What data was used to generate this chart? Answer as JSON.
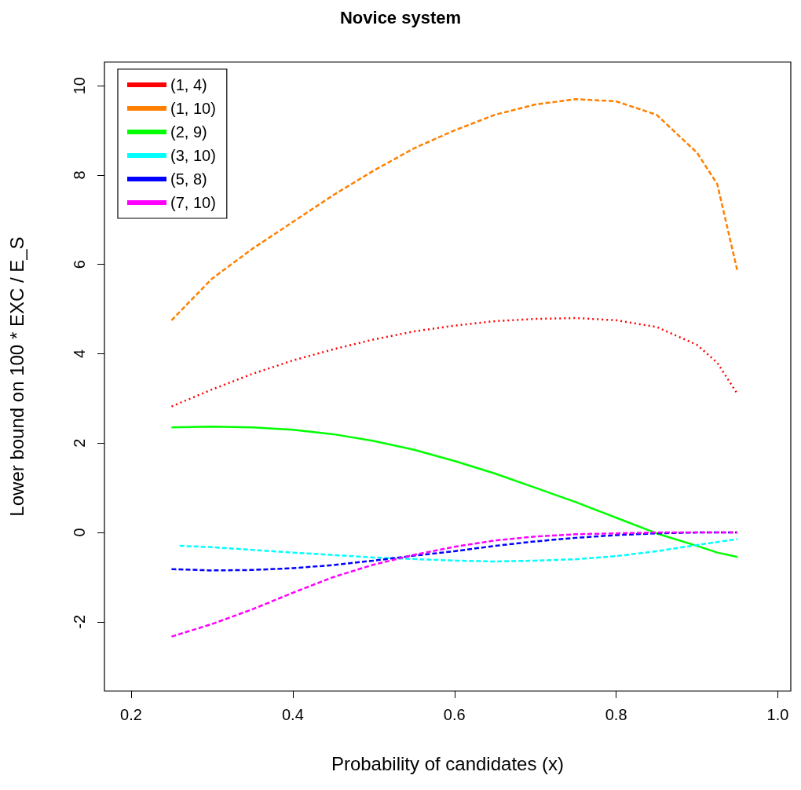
{
  "chart_data": {
    "type": "line",
    "title": "Novice system",
    "xlabel": "Probability of candidates (x)",
    "ylabel": "Lower bound on 100 * EXC / E_S",
    "x": [
      0.25,
      0.3,
      0.35,
      0.4,
      0.45,
      0.5,
      0.55,
      0.6,
      0.65,
      0.7,
      0.75,
      0.8,
      0.85,
      0.9,
      0.925,
      0.95
    ],
    "series": [
      {
        "name": "(1, 4)",
        "color": "#ff0000",
        "line_style": "dotted",
        "values": [
          2.82,
          3.2,
          3.55,
          3.85,
          4.1,
          4.32,
          4.5,
          4.63,
          4.73,
          4.78,
          4.8,
          4.75,
          4.6,
          4.2,
          3.8,
          3.1
        ]
      },
      {
        "name": "(1, 10)",
        "color": "#ff8000",
        "line_style": "dashed",
        "values": [
          4.75,
          5.68,
          6.35,
          6.95,
          7.55,
          8.1,
          8.6,
          9.0,
          9.35,
          9.58,
          9.7,
          9.65,
          9.35,
          8.5,
          7.8,
          5.85
        ]
      },
      {
        "name": "(2, 9)",
        "color": "#00ff00",
        "line_style": "solid",
        "values": [
          2.35,
          2.37,
          2.35,
          2.3,
          2.2,
          2.05,
          1.85,
          1.6,
          1.32,
          1.0,
          0.68,
          0.33,
          -0.02,
          -0.3,
          -0.45,
          -0.55
        ]
      },
      {
        "name": "(3, 10)",
        "color": "#00ffff",
        "line_style": "dashed",
        "x": [
          0.26,
          0.3,
          0.4,
          0.5,
          0.6,
          0.65,
          0.7,
          0.75,
          0.8,
          0.85,
          0.9,
          0.95
        ],
        "values": [
          -0.3,
          -0.33,
          -0.45,
          -0.56,
          -0.63,
          -0.65,
          -0.63,
          -0.6,
          -0.53,
          -0.42,
          -0.28,
          -0.15
        ]
      },
      {
        "name": "(5, 8)",
        "color": "#0000ff",
        "line_style": "dashed",
        "values": [
          -0.82,
          -0.85,
          -0.84,
          -0.8,
          -0.73,
          -0.63,
          -0.52,
          -0.42,
          -0.3,
          -0.2,
          -0.12,
          -0.06,
          -0.02,
          0,
          0,
          0
        ]
      },
      {
        "name": "(7, 10)",
        "color": "#ff00ff",
        "line_style": "dashed",
        "values": [
          -2.33,
          -2.05,
          -1.72,
          -1.35,
          -1.0,
          -0.72,
          -0.5,
          -0.32,
          -0.18,
          -0.09,
          -0.04,
          -0.02,
          0,
          0,
          0,
          0
        ]
      }
    ],
    "xlim": [
      0.167,
      1.016
    ],
    "xticks": [
      0.2,
      0.4,
      0.6,
      0.8,
      {
        "value": 1,
        "label": "1.0"
      }
    ],
    "ylim": [
      -3.55,
      10.53
    ],
    "yticks": [
      -2,
      0,
      2,
      4,
      6,
      8,
      10
    ],
    "grid": false,
    "legend": "top left",
    "marker": "none"
  }
}
